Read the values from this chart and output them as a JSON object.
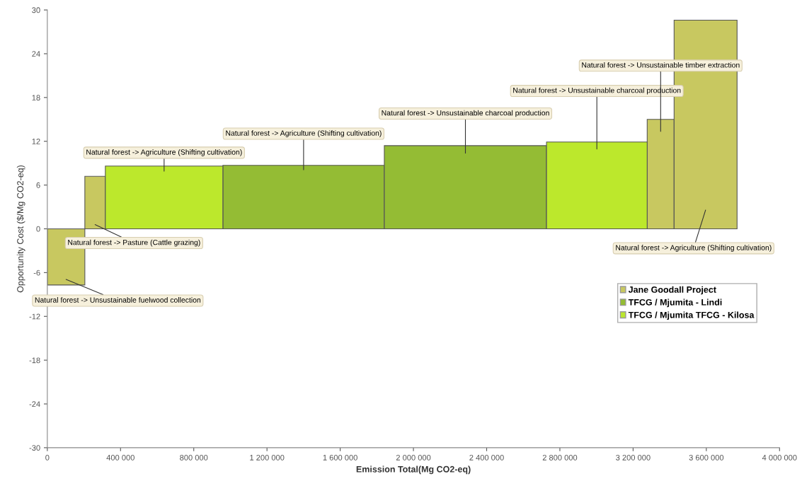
{
  "chart_data": {
    "type": "bar",
    "xlabel": "Emission Total(Mg CO2-eq)",
    "ylabel": "Opportunity Cost ($/Mg CO2-eq)",
    "x": [
      102500,
      261000,
      638000,
      1400000,
      2284000,
      3002000,
      3350500,
      3596000
    ],
    "series": [
      {
        "name": "Jane Goodall Project",
        "color": "#c8c860",
        "values": [
          -7.7,
          7.2,
          null,
          null,
          null,
          null,
          15.0,
          28.6
        ]
      },
      {
        "name": "TFCG / Mjumita - Lindi",
        "color": "#94bc34",
        "values": [
          null,
          null,
          null,
          8.7,
          11.4,
          null,
          null,
          null
        ]
      },
      {
        "name": "TFCG / Mjumita TFCG - Kilosa",
        "color": "#bce82c",
        "values": [
          null,
          null,
          8.6,
          null,
          null,
          11.9,
          null,
          null
        ]
      }
    ],
    "xlim": [
      0,
      4000000
    ],
    "xticks": [
      0,
      {
        "value": 400000,
        "label": "400 000"
      },
      {
        "value": 800000,
        "label": "800 000"
      },
      {
        "value": 1200000,
        "label": "1 200 000"
      },
      {
        "value": 1600000,
        "label": "1 600 000"
      },
      {
        "value": 2000000,
        "label": "2 000 000"
      },
      {
        "value": 2400000,
        "label": "2 400 000"
      },
      {
        "value": 2800000,
        "label": "2 800 000"
      },
      {
        "value": 3200000,
        "label": "3 200 000"
      },
      {
        "value": 3600000,
        "label": "3 600 000"
      },
      {
        "value": 4000000,
        "label": "4 000 000"
      }
    ],
    "ylim": [
      -30,
      30
    ],
    "yticks": [
      -30,
      -24,
      -18,
      -12,
      -6,
      0,
      6,
      12,
      18,
      24,
      30
    ],
    "annotations": [
      "Natural forest -> Unsustainable fuelwood collection",
      "Natural forest -> Pasture (Cattle grazing)",
      "Natural forest -> Agriculture (Shifting cultivation)",
      "Natural forest -> Agriculture (Shifting cultivation)",
      "Natural forest -> Unsustainable charcoal production",
      "Natural forest -> Unsustainable charcoal production",
      "Natural forest -> Unsustainable timber extraction",
      "Natural forest -> Agriculture (Shifting cultivation)"
    ],
    "legend": "right",
    "grid": false
  }
}
